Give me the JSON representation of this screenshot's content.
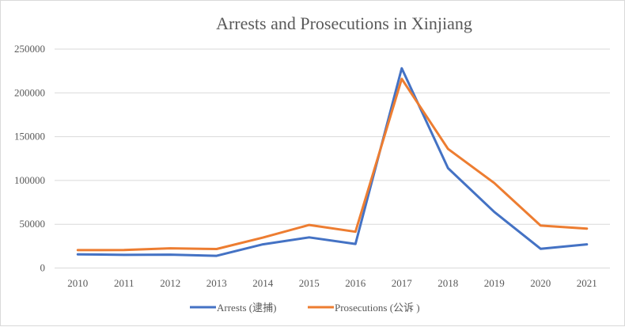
{
  "chart_data": {
    "type": "line",
    "title": "Arrests and Prosecutions in Xinjiang",
    "xlabel": "",
    "ylabel": "",
    "categories": [
      "2010",
      "2011",
      "2012",
      "2013",
      "2014",
      "2015",
      "2016",
      "2017",
      "2018",
      "2019",
      "2020",
      "2021"
    ],
    "ylim": [
      0,
      250000
    ],
    "yticks": [
      "0",
      "50000",
      "100000",
      "150000",
      "200000",
      "250000"
    ],
    "grid": true,
    "legend_position": "bottom",
    "series": [
      {
        "name": "Arrests (逮捕)",
        "color": "#4472C4",
        "values": [
          15600,
          15000,
          15300,
          13900,
          27000,
          35000,
          27500,
          228000,
          114000,
          64000,
          22000,
          27000
        ]
      },
      {
        "name": "Prosecutions (公诉 )",
        "color": "#ED7D31",
        "values": [
          20400,
          20500,
          22500,
          21700,
          34700,
          49200,
          41400,
          216000,
          136000,
          97000,
          48500,
          45000
        ]
      }
    ]
  }
}
